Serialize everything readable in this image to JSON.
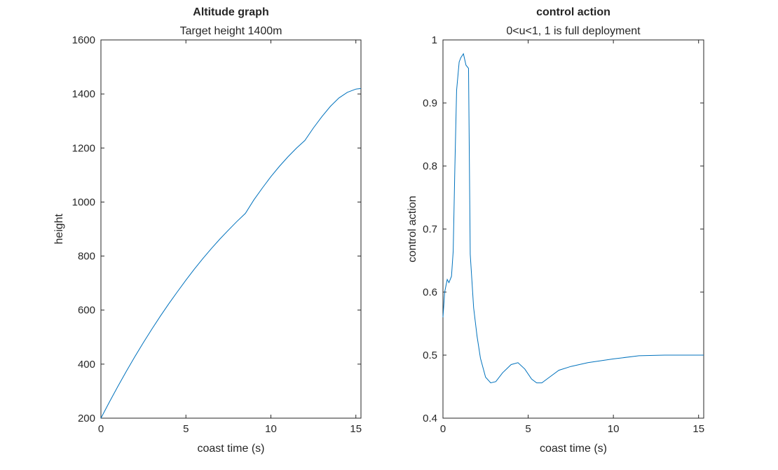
{
  "chart_data": [
    {
      "type": "line",
      "title": "Altitude graph",
      "subtitle": "Target height 1400m",
      "xlabel": "coast time (s)",
      "ylabel": "height",
      "xlim": [
        0,
        15.3
      ],
      "ylim": [
        200,
        1600
      ],
      "xticks": [
        0,
        5,
        10,
        15
      ],
      "yticks": [
        200,
        400,
        600,
        800,
        1000,
        1200,
        1400,
        1600
      ],
      "grid": false,
      "line_color": "#0072BD",
      "series": [
        {
          "x": [
            0,
            0.5,
            1,
            1.5,
            2,
            2.5,
            3,
            3.5,
            4,
            4.5,
            5,
            5.5,
            6,
            6.5,
            7,
            7.5,
            8,
            8.5,
            9,
            9.5,
            10,
            10.5,
            11,
            11.5,
            12,
            12.5,
            13,
            13.5,
            14,
            14.5,
            15,
            15.3
          ],
          "values": [
            200,
            260,
            318,
            374,
            428,
            480,
            530,
            578,
            624,
            668,
            711,
            752,
            791,
            828,
            863,
            896,
            928,
            958,
            1008,
            1052,
            1094,
            1132,
            1167,
            1199,
            1228,
            1274,
            1316,
            1354,
            1385,
            1406,
            1418,
            1420
          ]
        }
      ]
    },
    {
      "type": "line",
      "title": "control action",
      "subtitle": "0<u<1, 1 is full deployment",
      "xlabel": "coast time (s)",
      "ylabel": "control action",
      "xlim": [
        0,
        15.3
      ],
      "ylim": [
        0.4,
        1.0
      ],
      "xticks": [
        0,
        5,
        10,
        15
      ],
      "yticks": [
        0.4,
        0.5,
        0.6,
        0.7,
        0.8,
        0.9,
        1.0
      ],
      "ytick_labels": [
        "0.4",
        "0.5",
        "0.6",
        "0.7",
        "0.8",
        "0.9",
        "1"
      ],
      "grid": false,
      "line_color": "#0072BD",
      "series": [
        {
          "x": [
            0,
            0.1,
            0.25,
            0.35,
            0.5,
            0.6,
            0.7,
            0.8,
            0.95,
            1.05,
            1.2,
            1.35,
            1.5,
            1.6,
            1.8,
            2.0,
            2.2,
            2.5,
            2.8,
            3.1,
            3.5,
            4.0,
            4.4,
            4.8,
            5.2,
            5.5,
            5.8,
            6.2,
            6.8,
            7.5,
            8.5,
            10,
            11.5,
            13,
            14,
            15.3
          ],
          "values": [
            0.56,
            0.6,
            0.62,
            0.615,
            0.625,
            0.665,
            0.8,
            0.92,
            0.965,
            0.972,
            0.978,
            0.96,
            0.955,
            0.66,
            0.575,
            0.53,
            0.495,
            0.465,
            0.456,
            0.458,
            0.472,
            0.485,
            0.488,
            0.478,
            0.462,
            0.456,
            0.456,
            0.464,
            0.476,
            0.482,
            0.488,
            0.494,
            0.499,
            0.5,
            0.5,
            0.5
          ]
        }
      ]
    }
  ]
}
